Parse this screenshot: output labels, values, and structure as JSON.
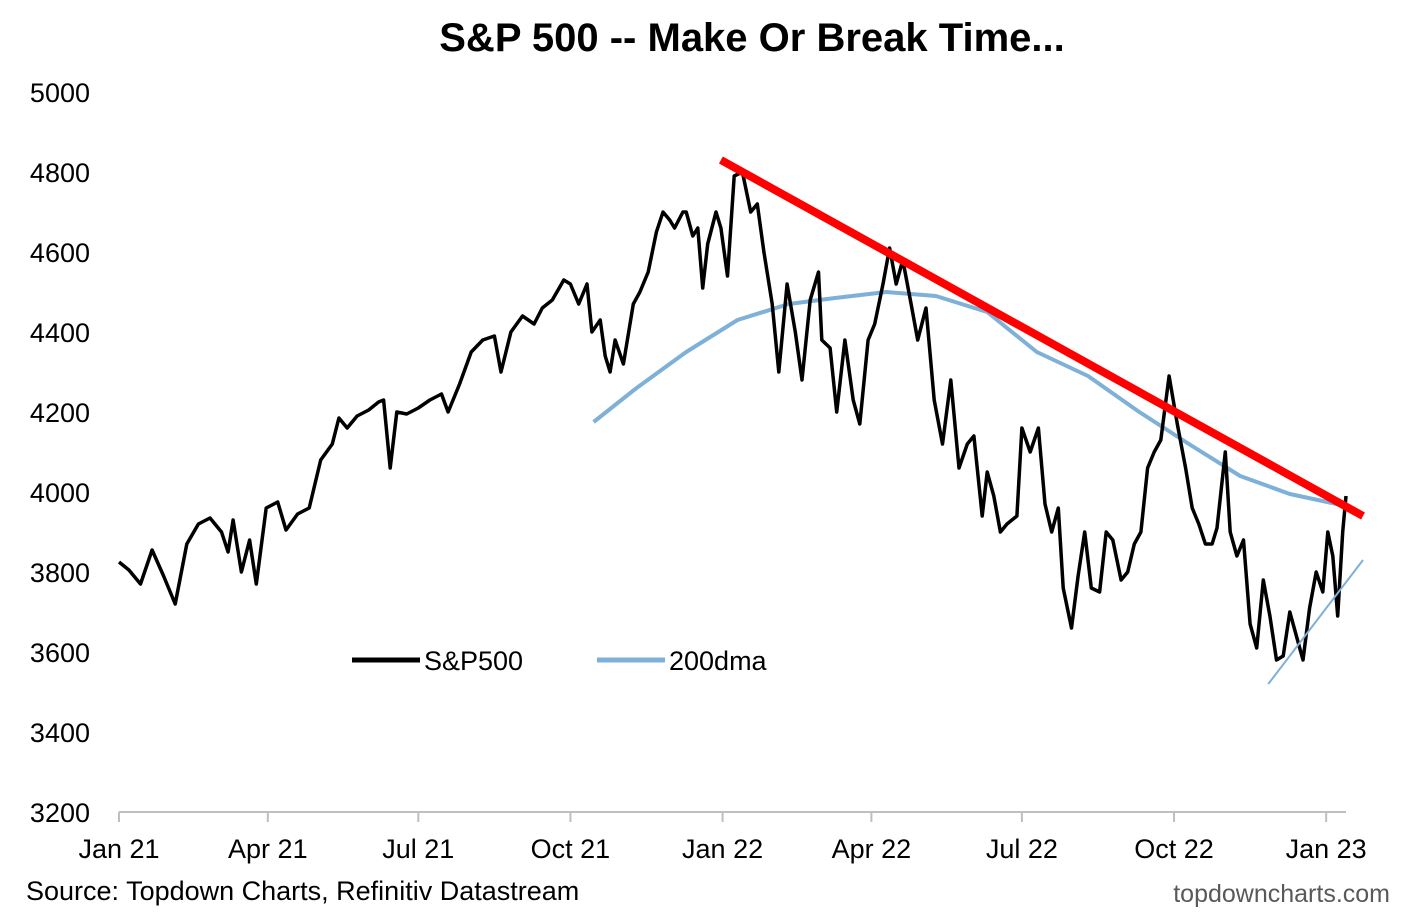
{
  "source_note": "Source: Topdown Charts, Refinitiv Datastream",
  "watermark": "topdowncharts.com",
  "chart_data": {
    "type": "line",
    "title": "S&P 500 -- Make Or Break Time...",
    "xlabel": "",
    "ylabel": "",
    "ylim": [
      3200,
      5000
    ],
    "yticks": [
      3200,
      3400,
      3600,
      3800,
      4000,
      4200,
      4400,
      4600,
      4800,
      5000
    ],
    "xlim": [
      "2021-01-01",
      "2023-01-13"
    ],
    "xticks": [
      {
        "date": "2021-01-01",
        "label": "Jan 21"
      },
      {
        "date": "2021-04-01",
        "label": "Apr 21"
      },
      {
        "date": "2021-07-01",
        "label": "Jul 21"
      },
      {
        "date": "2021-10-01",
        "label": "Oct 21"
      },
      {
        "date": "2022-01-01",
        "label": "Jan 22"
      },
      {
        "date": "2022-04-01",
        "label": "Apr 22"
      },
      {
        "date": "2022-07-01",
        "label": "Jul 22"
      },
      {
        "date": "2022-10-01",
        "label": "Oct 22"
      },
      {
        "date": "2023-01-01",
        "label": "Jan 23"
      }
    ],
    "grid": false,
    "legend_position": "bottom-left",
    "series": [
      {
        "name": "S&P500",
        "color": "#000000",
        "points": [
          [
            "2021-01-01",
            3825
          ],
          [
            "2021-01-07",
            3805
          ],
          [
            "2021-01-14",
            3770
          ],
          [
            "2021-01-21",
            3855
          ],
          [
            "2021-01-28",
            3790
          ],
          [
            "2021-02-04",
            3720
          ],
          [
            "2021-02-11",
            3870
          ],
          [
            "2021-02-18",
            3920
          ],
          [
            "2021-02-25",
            3935
          ],
          [
            "2021-03-04",
            3900
          ],
          [
            "2021-03-08",
            3850
          ],
          [
            "2021-03-11",
            3930
          ],
          [
            "2021-03-16",
            3800
          ],
          [
            "2021-03-21",
            3880
          ],
          [
            "2021-03-25",
            3770
          ],
          [
            "2021-03-31",
            3960
          ],
          [
            "2021-04-07",
            3975
          ],
          [
            "2021-04-12",
            3905
          ],
          [
            "2021-04-19",
            3945
          ],
          [
            "2021-04-26",
            3960
          ],
          [
            "2021-05-03",
            4080
          ],
          [
            "2021-05-10",
            4120
          ],
          [
            "2021-05-14",
            4185
          ],
          [
            "2021-05-19",
            4160
          ],
          [
            "2021-05-25",
            4190
          ],
          [
            "2021-06-01",
            4205
          ],
          [
            "2021-06-07",
            4225
          ],
          [
            "2021-06-10",
            4230
          ],
          [
            "2021-06-14",
            4060
          ],
          [
            "2021-06-18",
            4200
          ],
          [
            "2021-06-24",
            4195
          ],
          [
            "2021-07-01",
            4210
          ],
          [
            "2021-07-08",
            4230
          ],
          [
            "2021-07-15",
            4245
          ],
          [
            "2021-07-19",
            4200
          ],
          [
            "2021-07-26",
            4270
          ],
          [
            "2021-08-02",
            4350
          ],
          [
            "2021-08-09",
            4380
          ],
          [
            "2021-08-16",
            4390
          ],
          [
            "2021-08-20",
            4300
          ],
          [
            "2021-08-26",
            4400
          ],
          [
            "2021-09-02",
            4440
          ],
          [
            "2021-09-09",
            4420
          ],
          [
            "2021-09-14",
            4460
          ],
          [
            "2021-09-20",
            4480
          ],
          [
            "2021-09-27",
            4530
          ],
          [
            "2021-10-01",
            4520
          ],
          [
            "2021-10-06",
            4470
          ],
          [
            "2021-10-11",
            4520
          ],
          [
            "2021-10-14",
            4400
          ],
          [
            "2021-10-19",
            4430
          ],
          [
            "2021-10-22",
            4340
          ],
          [
            "2021-10-25",
            4300
          ],
          [
            "2021-10-28",
            4380
          ],
          [
            "2021-11-02",
            4320
          ],
          [
            "2021-11-08",
            4470
          ],
          [
            "2021-11-12",
            4500
          ],
          [
            "2021-11-17",
            4550
          ],
          [
            "2021-11-22",
            4650
          ],
          [
            "2021-11-26",
            4700
          ],
          [
            "2021-11-30",
            4680
          ],
          [
            "2021-12-03",
            4660
          ],
          [
            "2021-12-08",
            4700
          ],
          [
            "2021-12-10",
            4700
          ],
          [
            "2021-12-14",
            4640
          ],
          [
            "2021-12-17",
            4660
          ],
          [
            "2021-12-20",
            4510
          ],
          [
            "2021-12-23",
            4620
          ],
          [
            "2021-12-28",
            4700
          ],
          [
            "2021-12-31",
            4660
          ],
          [
            "2022-01-04",
            4540
          ],
          [
            "2022-01-08",
            4790
          ],
          [
            "2022-01-13",
            4800
          ],
          [
            "2022-01-18",
            4700
          ],
          [
            "2022-01-22",
            4720
          ],
          [
            "2022-01-26",
            4600
          ],
          [
            "2022-01-31",
            4470
          ],
          [
            "2022-02-04",
            4300
          ],
          [
            "2022-02-09",
            4520
          ],
          [
            "2022-02-14",
            4400
          ],
          [
            "2022-02-18",
            4280
          ],
          [
            "2022-02-23",
            4480
          ],
          [
            "2022-02-28",
            4550
          ],
          [
            "2022-03-02",
            4380
          ],
          [
            "2022-03-07",
            4360
          ],
          [
            "2022-03-11",
            4200
          ],
          [
            "2022-03-16",
            4380
          ],
          [
            "2022-03-21",
            4230
          ],
          [
            "2022-03-25",
            4170
          ],
          [
            "2022-03-30",
            4380
          ],
          [
            "2022-04-03",
            4420
          ],
          [
            "2022-04-08",
            4520
          ],
          [
            "2022-04-12",
            4610
          ],
          [
            "2022-04-16",
            4520
          ],
          [
            "2022-04-20",
            4580
          ],
          [
            "2022-04-25",
            4470
          ],
          [
            "2022-04-29",
            4380
          ],
          [
            "2022-05-04",
            4460
          ],
          [
            "2022-05-09",
            4230
          ],
          [
            "2022-05-14",
            4120
          ],
          [
            "2022-05-19",
            4280
          ],
          [
            "2022-05-24",
            4060
          ],
          [
            "2022-05-29",
            4120
          ],
          [
            "2022-06-02",
            4140
          ],
          [
            "2022-06-07",
            3940
          ],
          [
            "2022-06-10",
            4050
          ],
          [
            "2022-06-14",
            3990
          ],
          [
            "2022-06-18",
            3900
          ],
          [
            "2022-06-22",
            3920
          ],
          [
            "2022-06-28",
            3940
          ],
          [
            "2022-07-01",
            4160
          ],
          [
            "2022-07-06",
            4100
          ],
          [
            "2022-07-11",
            4160
          ],
          [
            "2022-07-15",
            3970
          ],
          [
            "2022-07-19",
            3900
          ],
          [
            "2022-07-23",
            3960
          ],
          [
            "2022-07-26",
            3760
          ],
          [
            "2022-07-31",
            3660
          ],
          [
            "2022-08-04",
            3790
          ],
          [
            "2022-08-08",
            3900
          ],
          [
            "2022-08-12",
            3760
          ],
          [
            "2022-08-17",
            3750
          ],
          [
            "2022-08-21",
            3900
          ],
          [
            "2022-08-25",
            3880
          ],
          [
            "2022-08-30",
            3780
          ],
          [
            "2022-09-03",
            3800
          ],
          [
            "2022-09-07",
            3870
          ],
          [
            "2022-09-11",
            3900
          ],
          [
            "2022-09-15",
            4060
          ],
          [
            "2022-09-19",
            4100
          ],
          [
            "2022-09-23",
            4130
          ],
          [
            "2022-09-28",
            4290
          ],
          [
            "2022-10-03",
            4170
          ],
          [
            "2022-10-08",
            4060
          ],
          [
            "2022-10-12",
            3960
          ],
          [
            "2022-10-16",
            3920
          ],
          [
            "2022-10-20",
            3870
          ],
          [
            "2022-10-24",
            3870
          ],
          [
            "2022-10-27",
            3910
          ],
          [
            "2022-11-01",
            4100
          ],
          [
            "2022-11-04",
            3900
          ],
          [
            "2022-11-08",
            3840
          ],
          [
            "2022-11-12",
            3880
          ],
          [
            "2022-11-16",
            3670
          ],
          [
            "2022-11-20",
            3610
          ],
          [
            "2022-11-24",
            3780
          ],
          [
            "2022-11-28",
            3690
          ],
          [
            "2022-12-02",
            3580
          ],
          [
            "2022-12-06",
            3590
          ],
          [
            "2022-12-10",
            3700
          ],
          [
            "2022-12-14",
            3640
          ],
          [
            "2022-12-18",
            3580
          ],
          [
            "2022-12-22",
            3710
          ],
          [
            "2022-12-26",
            3800
          ],
          [
            "2022-12-30",
            3750
          ],
          [
            "2023-01-02",
            3900
          ],
          [
            "2023-01-05",
            3840
          ],
          [
            "2023-01-08",
            3690
          ],
          [
            "2023-01-11",
            3900
          ],
          [
            "2023-01-13",
            3990
          ]
        ]
      },
      {
        "name": "200dma",
        "color": "#7eb0d8",
        "points": [
          [
            "2021-10-15",
            4175
          ],
          [
            "2021-11-10",
            4260
          ],
          [
            "2021-12-10",
            4350
          ],
          [
            "2022-01-10",
            4430
          ],
          [
            "2022-02-10",
            4470
          ],
          [
            "2022-03-10",
            4485
          ],
          [
            "2022-04-10",
            4500
          ],
          [
            "2022-05-10",
            4490
          ],
          [
            "2022-06-10",
            4450
          ],
          [
            "2022-07-10",
            4350
          ],
          [
            "2022-08-10",
            4290
          ],
          [
            "2022-09-10",
            4200
          ],
          [
            "2022-10-10",
            4120
          ],
          [
            "2022-11-10",
            4040
          ],
          [
            "2022-12-10",
            3995
          ],
          [
            "2023-01-13",
            3965
          ]
        ]
      }
    ],
    "trendlines": [
      {
        "start": [
          "2021-12-31",
          4830
        ],
        "end": [
          "2023-01-13",
          3960
        ],
        "color": "#ff0000"
      },
      {
        "start": [
          "2022-11-27",
          3520
        ],
        "end": [
          "2023-01-13",
          3830
        ],
        "color": "#7eb0d8"
      }
    ]
  }
}
